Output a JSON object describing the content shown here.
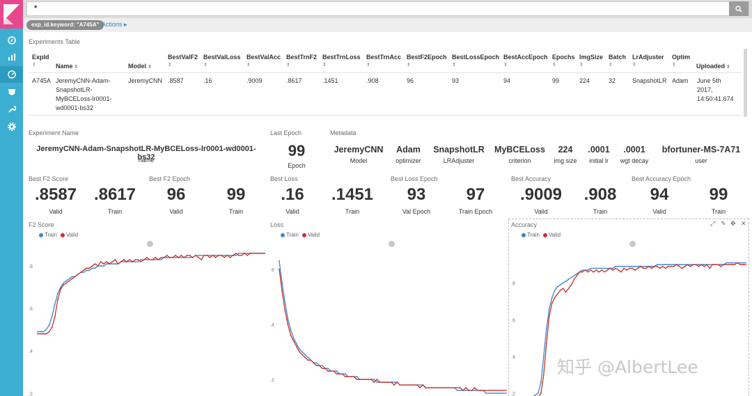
{
  "search": {
    "query": "*"
  },
  "filter": {
    "pill": "exp_id.keyword: \"A745A\"",
    "actions": "Actions"
  },
  "nav": {
    "icons": [
      "logo",
      "discover-icon",
      "visualize-icon",
      "dashboard-icon",
      "timelion-icon",
      "dev-tools-icon",
      "management-icon"
    ]
  },
  "table": {
    "title": "Experiments Table",
    "headers": [
      "ExpId",
      "Name",
      "Model",
      "BestValF2",
      "BestValLoss",
      "BestValAcc",
      "BestTrnF2",
      "BestTrnLoss",
      "BestTrnAcc",
      "BestF2Epoch",
      "BestLossEpoch",
      "BestAccEpoch",
      "Epochs",
      "ImgSize",
      "Batch",
      "LrAdjuster",
      "Optim",
      "Uploaded"
    ],
    "row": {
      "expid": "A745A",
      "name": [
        "JeremyCNN-Adam-",
        "SnapshotLR-",
        "MyBCELoss-lr0001-",
        "wd0001-bs32"
      ],
      "model": "JeremyCNN",
      "cells": [
        ".8587",
        ".16",
        ".9009",
        ".8617",
        ".1451",
        ".908",
        "96",
        "93",
        "94",
        "99",
        "224",
        "32",
        "SnapshotLR",
        "Adam"
      ],
      "uploaded": [
        "June 5th",
        "2017,",
        "14:50:41.674"
      ]
    }
  },
  "experiment_name": {
    "title": "Experiment Name",
    "value": "JeremyCNN-Adam-SnapshotLR-MyBCELoss-lr0001-wd0001-bs32",
    "label": "name"
  },
  "last_epoch": {
    "title": "Last Epoch",
    "value": "99",
    "label": "Epoch"
  },
  "metadata": {
    "title": "Metadata",
    "items": [
      {
        "value": "JeremyCNN",
        "label": "Model"
      },
      {
        "value": "Adam",
        "label": "optimizer"
      },
      {
        "value": "SnapshotLR",
        "label": "LRAdjuster"
      },
      {
        "value": "MyBCELoss",
        "label": "criterion"
      },
      {
        "value": "224",
        "label": "img size"
      },
      {
        "value": ".0001",
        "label": "initial lr"
      },
      {
        "value": ".0001",
        "label": "wgt decay"
      },
      {
        "value": "bfortuner-MS-7A71",
        "label": "user"
      }
    ]
  },
  "scores": [
    {
      "title": "Best F2 Score",
      "items": [
        {
          "value": ".8587",
          "label": "Valid"
        },
        {
          "value": ".8617",
          "label": "Train"
        }
      ]
    },
    {
      "title": "Best F2 Epoch",
      "items": [
        {
          "value": "96",
          "label": "Valid"
        },
        {
          "value": "99",
          "label": "Train"
        }
      ]
    },
    {
      "title": "Best Loss",
      "items": [
        {
          "value": ".16",
          "label": "Valid"
        },
        {
          "value": ".1451",
          "label": "Train"
        }
      ]
    },
    {
      "title": "Best Loss Epoch",
      "items": [
        {
          "value": "93",
          "label": "Val Epoch"
        },
        {
          "value": "97",
          "label": "Train Epoch"
        }
      ]
    },
    {
      "title": "Best Accuracy",
      "items": [
        {
          "value": ".9009",
          "label": "Valid"
        },
        {
          "value": ".908",
          "label": "Train"
        }
      ]
    },
    {
      "title": "Best Accuracy Epoch",
      "items": [
        {
          "value": "94",
          "label": "Valid"
        },
        {
          "value": "99",
          "label": "Train"
        }
      ]
    }
  ],
  "colors": {
    "train": "#3a86c8",
    "valid": "#c9302c",
    "nav": "#3caed2",
    "logo": "#e8488b"
  },
  "watermark": "知乎 @AlbertLee",
  "chart_data": [
    {
      "type": "line",
      "title": "F2 Score",
      "ylim": [
        0.2,
        0.85
      ],
      "yticks": [
        ".2",
        ".4",
        ".6",
        ".8"
      ],
      "series": [
        {
          "name": "Train",
          "y": [
            0.49,
            0.49,
            0.49,
            0.5,
            0.52,
            0.56,
            0.62,
            0.67,
            0.7,
            0.72,
            0.73,
            0.74,
            0.75,
            0.75,
            0.76,
            0.77,
            0.77,
            0.78,
            0.78,
            0.79,
            0.79,
            0.8,
            0.8,
            0.8,
            0.81,
            0.81,
            0.81,
            0.81,
            0.81,
            0.82,
            0.82,
            0.82,
            0.82,
            0.82,
            0.82,
            0.82,
            0.83,
            0.83,
            0.83,
            0.83,
            0.83,
            0.83,
            0.83,
            0.83,
            0.84,
            0.84,
            0.84,
            0.84,
            0.84,
            0.84,
            0.84,
            0.84,
            0.84,
            0.84,
            0.84,
            0.85,
            0.85,
            0.85,
            0.85,
            0.85,
            0.85,
            0.85,
            0.85,
            0.85,
            0.85,
            0.85,
            0.85,
            0.85,
            0.85,
            0.85,
            0.86,
            0.86,
            0.86,
            0.86,
            0.86,
            0.86,
            0.86,
            0.86,
            0.86,
            0.86
          ]
        },
        {
          "name": "Valid",
          "y": [
            0.48,
            0.48,
            0.48,
            0.48,
            0.49,
            0.51,
            0.56,
            0.64,
            0.69,
            0.71,
            0.72,
            0.73,
            0.74,
            0.75,
            0.76,
            0.77,
            0.78,
            0.79,
            0.79,
            0.8,
            0.81,
            0.8,
            0.82,
            0.81,
            0.82,
            0.81,
            0.82,
            0.83,
            0.81,
            0.82,
            0.83,
            0.82,
            0.83,
            0.82,
            0.83,
            0.83,
            0.82,
            0.83,
            0.84,
            0.83,
            0.83,
            0.84,
            0.83,
            0.84,
            0.84,
            0.85,
            0.84,
            0.84,
            0.85,
            0.84,
            0.85,
            0.84,
            0.85,
            0.85,
            0.84,
            0.85,
            0.84,
            0.83,
            0.85,
            0.85,
            0.84,
            0.85,
            0.84,
            0.85,
            0.85,
            0.84,
            0.85,
            0.84,
            0.85,
            0.86,
            0.85,
            0.85,
            0.86,
            0.85,
            0.86,
            0.86,
            0.86,
            0.86,
            0.86,
            0.86
          ]
        }
      ]
    },
    {
      "type": "line",
      "title": "Loss",
      "ylim": [
        0.15,
        0.65
      ],
      "yticks": [
        ".2",
        ".4",
        ".6"
      ],
      "series": [
        {
          "name": "Train",
          "y": [
            0.63,
            0.55,
            0.48,
            0.42,
            0.38,
            0.35,
            0.33,
            0.31,
            0.3,
            0.29,
            0.28,
            0.27,
            0.26,
            0.26,
            0.25,
            0.25,
            0.24,
            0.24,
            0.23,
            0.23,
            0.23,
            0.22,
            0.22,
            0.22,
            0.21,
            0.21,
            0.21,
            0.21,
            0.2,
            0.2,
            0.2,
            0.2,
            0.2,
            0.2,
            0.19,
            0.19,
            0.19,
            0.19,
            0.19,
            0.19,
            0.19,
            0.19,
            0.18,
            0.18,
            0.18,
            0.18,
            0.18,
            0.18,
            0.18,
            0.18,
            0.18,
            0.17,
            0.17,
            0.17,
            0.17,
            0.17,
            0.17,
            0.17,
            0.17,
            0.17,
            0.17,
            0.17,
            0.16,
            0.16,
            0.16,
            0.16,
            0.16,
            0.16,
            0.16,
            0.16,
            0.16,
            0.16,
            0.15,
            0.15,
            0.15,
            0.15,
            0.15,
            0.15,
            0.15,
            0.15
          ]
        },
        {
          "name": "Valid",
          "y": [
            0.6,
            0.52,
            0.45,
            0.4,
            0.36,
            0.34,
            0.32,
            0.3,
            0.29,
            0.28,
            0.27,
            0.27,
            0.26,
            0.25,
            0.25,
            0.24,
            0.24,
            0.23,
            0.23,
            0.23,
            0.22,
            0.22,
            0.22,
            0.21,
            0.21,
            0.21,
            0.21,
            0.2,
            0.2,
            0.2,
            0.2,
            0.2,
            0.2,
            0.19,
            0.2,
            0.19,
            0.19,
            0.19,
            0.19,
            0.19,
            0.18,
            0.19,
            0.18,
            0.18,
            0.18,
            0.18,
            0.18,
            0.18,
            0.18,
            0.17,
            0.18,
            0.17,
            0.17,
            0.17,
            0.17,
            0.17,
            0.17,
            0.17,
            0.17,
            0.17,
            0.17,
            0.17,
            0.17,
            0.17,
            0.16,
            0.17,
            0.16,
            0.16,
            0.17,
            0.16,
            0.16,
            0.16,
            0.16,
            0.16,
            0.16,
            0.16,
            0.16,
            0.16,
            0.16,
            0.16
          ]
        }
      ]
    },
    {
      "type": "line",
      "title": "Accuracy",
      "ylim": [
        0.2,
        0.95
      ],
      "yticks": [
        ".2",
        ".4",
        ".6",
        ".8"
      ],
      "series": [
        {
          "name": "Train",
          "y": [
            0.18,
            0.18,
            0.18,
            0.19,
            0.2,
            0.26,
            0.4,
            0.55,
            0.66,
            0.72,
            0.76,
            0.78,
            0.79,
            0.8,
            0.81,
            0.82,
            0.83,
            0.84,
            0.85,
            0.86,
            0.87,
            0.87,
            0.87,
            0.88,
            0.88,
            0.88,
            0.88,
            0.88,
            0.88,
            0.88,
            0.88,
            0.88,
            0.89,
            0.89,
            0.89,
            0.89,
            0.89,
            0.89,
            0.89,
            0.89,
            0.89,
            0.89,
            0.89,
            0.89,
            0.89,
            0.89,
            0.89,
            0.9,
            0.9,
            0.9,
            0.9,
            0.9,
            0.9,
            0.9,
            0.9,
            0.9,
            0.9,
            0.9,
            0.9,
            0.9,
            0.9,
            0.9,
            0.9,
            0.9,
            0.9,
            0.9,
            0.9,
            0.9,
            0.9,
            0.9,
            0.9,
            0.9,
            0.91,
            0.91,
            0.91,
            0.91,
            0.91,
            0.91,
            0.91,
            0.91
          ]
        },
        {
          "name": "Valid",
          "y": [
            0.17,
            0.17,
            0.17,
            0.17,
            0.18,
            0.2,
            0.3,
            0.47,
            0.62,
            0.69,
            0.72,
            0.74,
            0.76,
            0.77,
            0.75,
            0.77,
            0.79,
            0.82,
            0.84,
            0.86,
            0.86,
            0.87,
            0.86,
            0.87,
            0.86,
            0.87,
            0.86,
            0.87,
            0.86,
            0.87,
            0.88,
            0.87,
            0.88,
            0.87,
            0.86,
            0.88,
            0.87,
            0.88,
            0.88,
            0.87,
            0.88,
            0.89,
            0.88,
            0.88,
            0.89,
            0.88,
            0.89,
            0.89,
            0.88,
            0.89,
            0.88,
            0.89,
            0.89,
            0.89,
            0.9,
            0.89,
            0.88,
            0.89,
            0.9,
            0.89,
            0.9,
            0.9,
            0.89,
            0.9,
            0.89,
            0.9,
            0.88,
            0.9,
            0.9,
            0.9,
            0.89,
            0.9,
            0.9,
            0.9,
            0.9,
            0.9,
            0.91,
            0.9,
            0.9,
            0.9
          ]
        }
      ]
    }
  ]
}
